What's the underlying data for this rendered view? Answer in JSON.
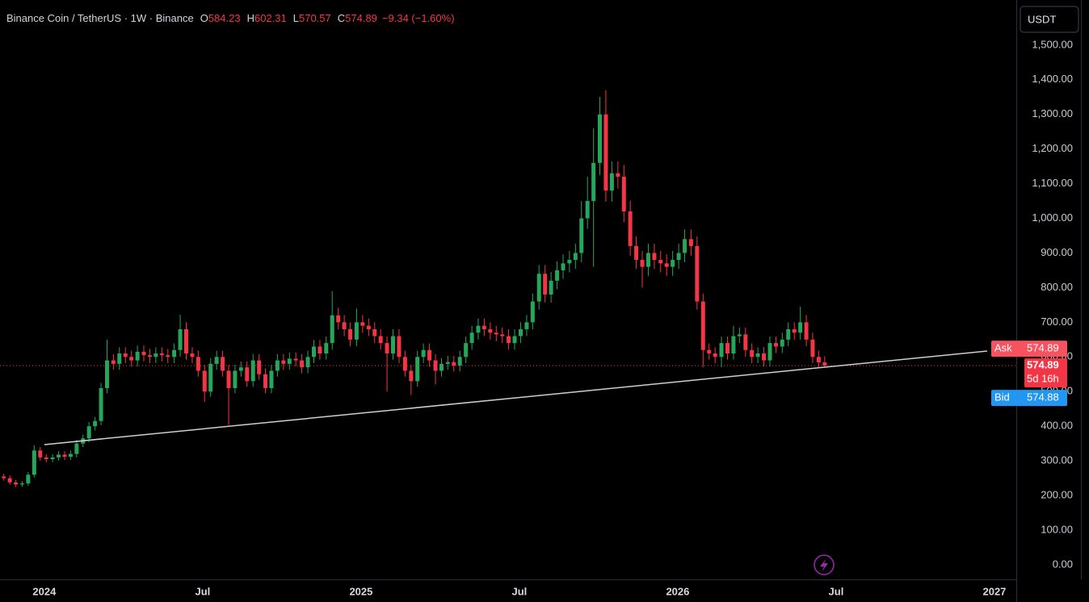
{
  "chart_data": {
    "type": "candlestick",
    "title": "Binance Coin / TetherUS · 1W · Binance",
    "ohlc_letters": [
      "O",
      "H",
      "L",
      "C"
    ],
    "change": "−9.34 (−1.60%)",
    "currency": "USDT",
    "up_color": "#26a65b",
    "down_color": "#f23645",
    "grid": false,
    "x": [
      2023.872,
      2023.891,
      2023.91,
      2023.93,
      2023.949,
      2023.968,
      2023.987,
      2024.006,
      2024.026,
      2024.045,
      2024.064,
      2024.083,
      2024.102,
      2024.122,
      2024.141,
      2024.16,
      2024.179,
      2024.198,
      2024.218,
      2024.237,
      2024.256,
      2024.275,
      2024.294,
      2024.314,
      2024.333,
      2024.352,
      2024.371,
      2024.39,
      2024.41,
      2024.429,
      2024.448,
      2024.467,
      2024.486,
      2024.506,
      2024.525,
      2024.544,
      2024.563,
      2024.582,
      2024.602,
      2024.621,
      2024.64,
      2024.659,
      2024.678,
      2024.698,
      2024.717,
      2024.736,
      2024.755,
      2024.774,
      2024.794,
      2024.813,
      2024.832,
      2024.851,
      2024.87,
      2024.89,
      2024.909,
      2024.928,
      2024.947,
      2024.966,
      2024.986,
      2025.005,
      2025.024,
      2025.043,
      2025.062,
      2025.082,
      2025.101,
      2025.12,
      2025.139,
      2025.158,
      2025.178,
      2025.197,
      2025.216,
      2025.235,
      2025.254,
      2025.274,
      2025.293,
      2025.312,
      2025.331,
      2025.35,
      2025.37,
      2025.389,
      2025.408,
      2025.427,
      2025.446,
      2025.466,
      2025.485,
      2025.504,
      2025.523,
      2025.542,
      2025.562,
      2025.581,
      2025.6,
      2025.619,
      2025.638,
      2025.658,
      2025.677,
      2025.696,
      2025.715,
      2025.734,
      2025.754,
      2025.773,
      2025.792,
      2025.811,
      2025.83,
      2025.85,
      2025.869,
      2025.888,
      2025.907,
      2025.926,
      2025.946,
      2025.965,
      2025.984,
      2026.003,
      2026.022,
      2026.042,
      2026.061,
      2026.08,
      2026.099,
      2026.118,
      2026.138,
      2026.157,
      2026.176,
      2026.195,
      2026.214,
      2026.234,
      2026.253,
      2026.272,
      2026.291,
      2026.31,
      2026.33,
      2026.349,
      2026.368,
      2026.387,
      2026.406,
      2026.426,
      2026.445,
      2026.464
    ],
    "open": [
      255,
      250,
      238,
      232,
      235,
      260,
      330,
      310,
      305,
      310,
      318,
      312,
      320,
      350,
      365,
      400,
      415,
      510,
      590,
      580,
      610,
      600,
      590,
      615,
      605,
      600,
      610,
      605,
      600,
      620,
      680,
      610,
      600,
      560,
      500,
      580,
      600,
      560,
      510,
      560,
      570,
      530,
      590,
      550,
      510,
      560,
      590,
      580,
      595,
      590,
      570,
      600,
      630,
      610,
      640,
      720,
      700,
      680,
      650,
      700,
      690,
      680,
      660,
      640,
      610,
      660,
      600,
      560,
      530,
      600,
      620,
      590,
      560,
      580,
      585,
      575,
      600,
      640,
      670,
      690,
      680,
      670,
      665,
      660,
      640,
      660,
      680,
      700,
      760,
      840,
      780,
      820,
      850,
      870,
      880,
      900,
      1000,
      1050,
      1160,
      1300,
      1080,
      1130,
      1120,
      1020,
      920,
      880,
      860,
      900,
      880,
      870,
      860,
      880,
      900,
      940,
      920,
      760,
      620,
      610,
      600,
      640,
      610,
      660,
      665,
      620,
      600,
      610,
      590,
      640,
      630,
      650,
      680,
      670,
      700,
      650,
      600,
      584.23
    ],
    "high": [
      263,
      258,
      245,
      242,
      268,
      345,
      340,
      319,
      319,
      328,
      328,
      330,
      361,
      376,
      412,
      427,
      525,
      650,
      608,
      628,
      628,
      618,
      633,
      633,
      623,
      628,
      628,
      623,
      639,
      722,
      700,
      628,
      618,
      577,
      597,
      618,
      618,
      577,
      577,
      587,
      587,
      608,
      608,
      567,
      577,
      608,
      608,
      613,
      613,
      608,
      618,
      649,
      649,
      659,
      790,
      742,
      721,
      700,
      740,
      721,
      711,
      700,
      680,
      659,
      680,
      680,
      618,
      577,
      618,
      639,
      639,
      608,
      597,
      603,
      603,
      618,
      659,
      690,
      711,
      711,
      700,
      690,
      685,
      680,
      680,
      700,
      721,
      783,
      865,
      865,
      845,
      876,
      896,
      906,
      927,
      1050,
      1120,
      1260,
      1350,
      1370,
      1164,
      1164,
      1154,
      1051,
      948,
      906,
      927,
      927,
      906,
      896,
      906,
      927,
      968,
      968,
      948,
      783,
      639,
      628,
      659,
      659,
      690,
      685,
      685,
      639,
      628,
      628,
      659,
      659,
      670,
      700,
      700,
      745,
      721,
      670,
      618,
      602.31
    ],
    "low": [
      243,
      231,
      225,
      225,
      228,
      252,
      301,
      296,
      296,
      301,
      303,
      303,
      310,
      340,
      354,
      388,
      403,
      495,
      563,
      563,
      582,
      572,
      572,
      587,
      582,
      582,
      587,
      582,
      582,
      601,
      592,
      582,
      543,
      470,
      485,
      563,
      543,
      403,
      495,
      543,
      514,
      514,
      534,
      495,
      495,
      543,
      563,
      563,
      572,
      553,
      553,
      582,
      592,
      592,
      621,
      679,
      660,
      631,
      631,
      669,
      660,
      640,
      621,
      500,
      592,
      582,
      543,
      490,
      514,
      582,
      572,
      520,
      543,
      563,
      558,
      558,
      582,
      621,
      650,
      660,
      650,
      645,
      640,
      621,
      621,
      640,
      660,
      679,
      737,
      757,
      757,
      795,
      825,
      844,
      854,
      873,
      970,
      860,
      1125,
      1048,
      1048,
      1086,
      989,
      892,
      854,
      800,
      834,
      854,
      844,
      834,
      834,
      854,
      873,
      892,
      737,
      570,
      592,
      582,
      570,
      592,
      592,
      640,
      601,
      582,
      582,
      572,
      572,
      611,
      611,
      631,
      650,
      650,
      631,
      582,
      567,
      570.57
    ],
    "close": [
      250,
      238,
      232,
      235,
      260,
      330,
      310,
      305,
      310,
      318,
      312,
      320,
      350,
      365,
      400,
      415,
      510,
      590,
      580,
      610,
      600,
      590,
      615,
      605,
      600,
      610,
      605,
      600,
      620,
      680,
      610,
      600,
      560,
      500,
      580,
      600,
      560,
      510,
      560,
      570,
      530,
      590,
      550,
      510,
      560,
      590,
      580,
      595,
      590,
      570,
      600,
      630,
      610,
      640,
      720,
      700,
      680,
      650,
      700,
      690,
      680,
      660,
      640,
      610,
      660,
      600,
      560,
      530,
      600,
      620,
      590,
      560,
      580,
      585,
      575,
      600,
      640,
      670,
      690,
      680,
      670,
      665,
      660,
      640,
      660,
      680,
      700,
      760,
      840,
      780,
      820,
      850,
      870,
      880,
      900,
      1000,
      1050,
      1160,
      1300,
      1080,
      1130,
      1120,
      1020,
      920,
      880,
      860,
      900,
      880,
      870,
      860,
      880,
      900,
      940,
      920,
      760,
      620,
      610,
      600,
      640,
      610,
      660,
      665,
      620,
      600,
      610,
      590,
      640,
      630,
      650,
      680,
      670,
      700,
      650,
      600,
      584.23,
      574.89
    ],
    "trendline": {
      "color": "#cfcfcf",
      "x": [
        2024.0,
        2026.977
      ],
      "values": [
        347,
        617
      ]
    },
    "quote": {
      "ask_label": "Ask",
      "ask": 574.89,
      "last": 574.89,
      "countdown": "5d 16h",
      "bid_label": "Bid",
      "bid": 574.88
    },
    "xlim": [
      2023.86,
      2027.069
    ],
    "xticks": [
      {
        "value": 2024,
        "label": "2024"
      },
      {
        "value": 2024.5,
        "label": "Jul"
      },
      {
        "value": 2025,
        "label": "2025"
      },
      {
        "value": 2025.5,
        "label": "Jul"
      },
      {
        "value": 2026,
        "label": "2026"
      },
      {
        "value": 2026.5,
        "label": "Jul"
      },
      {
        "value": 2027,
        "label": "2027"
      }
    ],
    "ylim": [
      -42,
      1630
    ],
    "yticks": [
      {
        "value": 0,
        "label": "0.00"
      },
      {
        "value": 100,
        "label": "100.00"
      },
      {
        "value": 200,
        "label": "200.00"
      },
      {
        "value": 300,
        "label": "300.00"
      },
      {
        "value": 400,
        "label": "400.00"
      },
      {
        "value": 500,
        "label": "500.00"
      },
      {
        "value": 600,
        "label": "600.00"
      },
      {
        "value": 700,
        "label": "700.00"
      },
      {
        "value": 800,
        "label": "800.00"
      },
      {
        "value": 900,
        "label": "900.00"
      },
      {
        "value": 1000,
        "label": "1,000.00"
      },
      {
        "value": 1100,
        "label": "1,100.00"
      },
      {
        "value": 1200,
        "label": "1,200.00"
      },
      {
        "value": 1300,
        "label": "1,300.00"
      },
      {
        "value": 1400,
        "label": "1,400.00"
      },
      {
        "value": 1500,
        "label": "1,500.00"
      }
    ]
  }
}
